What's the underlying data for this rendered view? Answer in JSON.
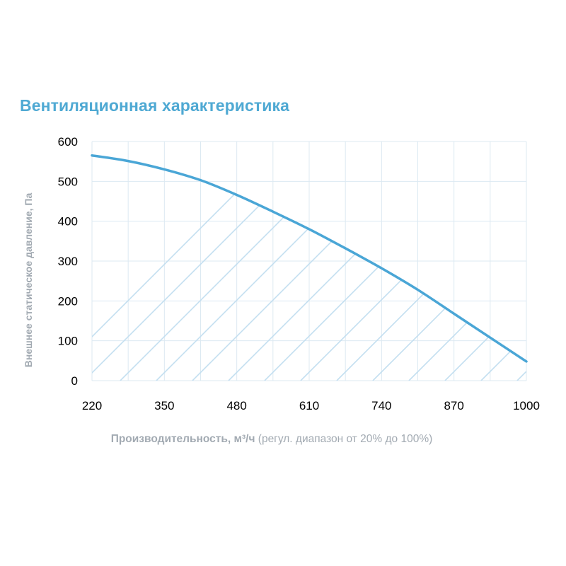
{
  "colors": {
    "title": "#4fa9d3",
    "curve": "#4aa6d6",
    "hatch": "#c3dff0",
    "grid": "#dce9f2",
    "axis_label": "#a2aab2",
    "tick_label": "#000000"
  },
  "chart_data": {
    "type": "area",
    "title": "Вентиляционная характеристика",
    "xlabel": "Производительность, м³/ч",
    "xlabel_note": "(регул. диапазон от 20% до 100%)",
    "ylabel": "Внешнее статическое давление, Па",
    "xlim": [
      220,
      1000
    ],
    "ylim": [
      0,
      600
    ],
    "x_ticks": [
      "220",
      "350",
      "480",
      "610",
      "740",
      "870",
      "1000"
    ],
    "y_ticks": [
      "0",
      "100",
      "200",
      "300",
      "400",
      "500",
      "600"
    ],
    "grid": true,
    "fill": "diagonal-hatch",
    "series": [
      {
        "x": [
          220,
          285,
          350,
          415,
          480,
          545,
          610,
          675,
          740,
          805,
          870,
          935,
          1000
        ],
        "y": [
          565,
          551,
          530,
          503,
          466,
          424,
          380,
          332,
          282,
          228,
          168,
          108,
          48
        ]
      }
    ]
  }
}
